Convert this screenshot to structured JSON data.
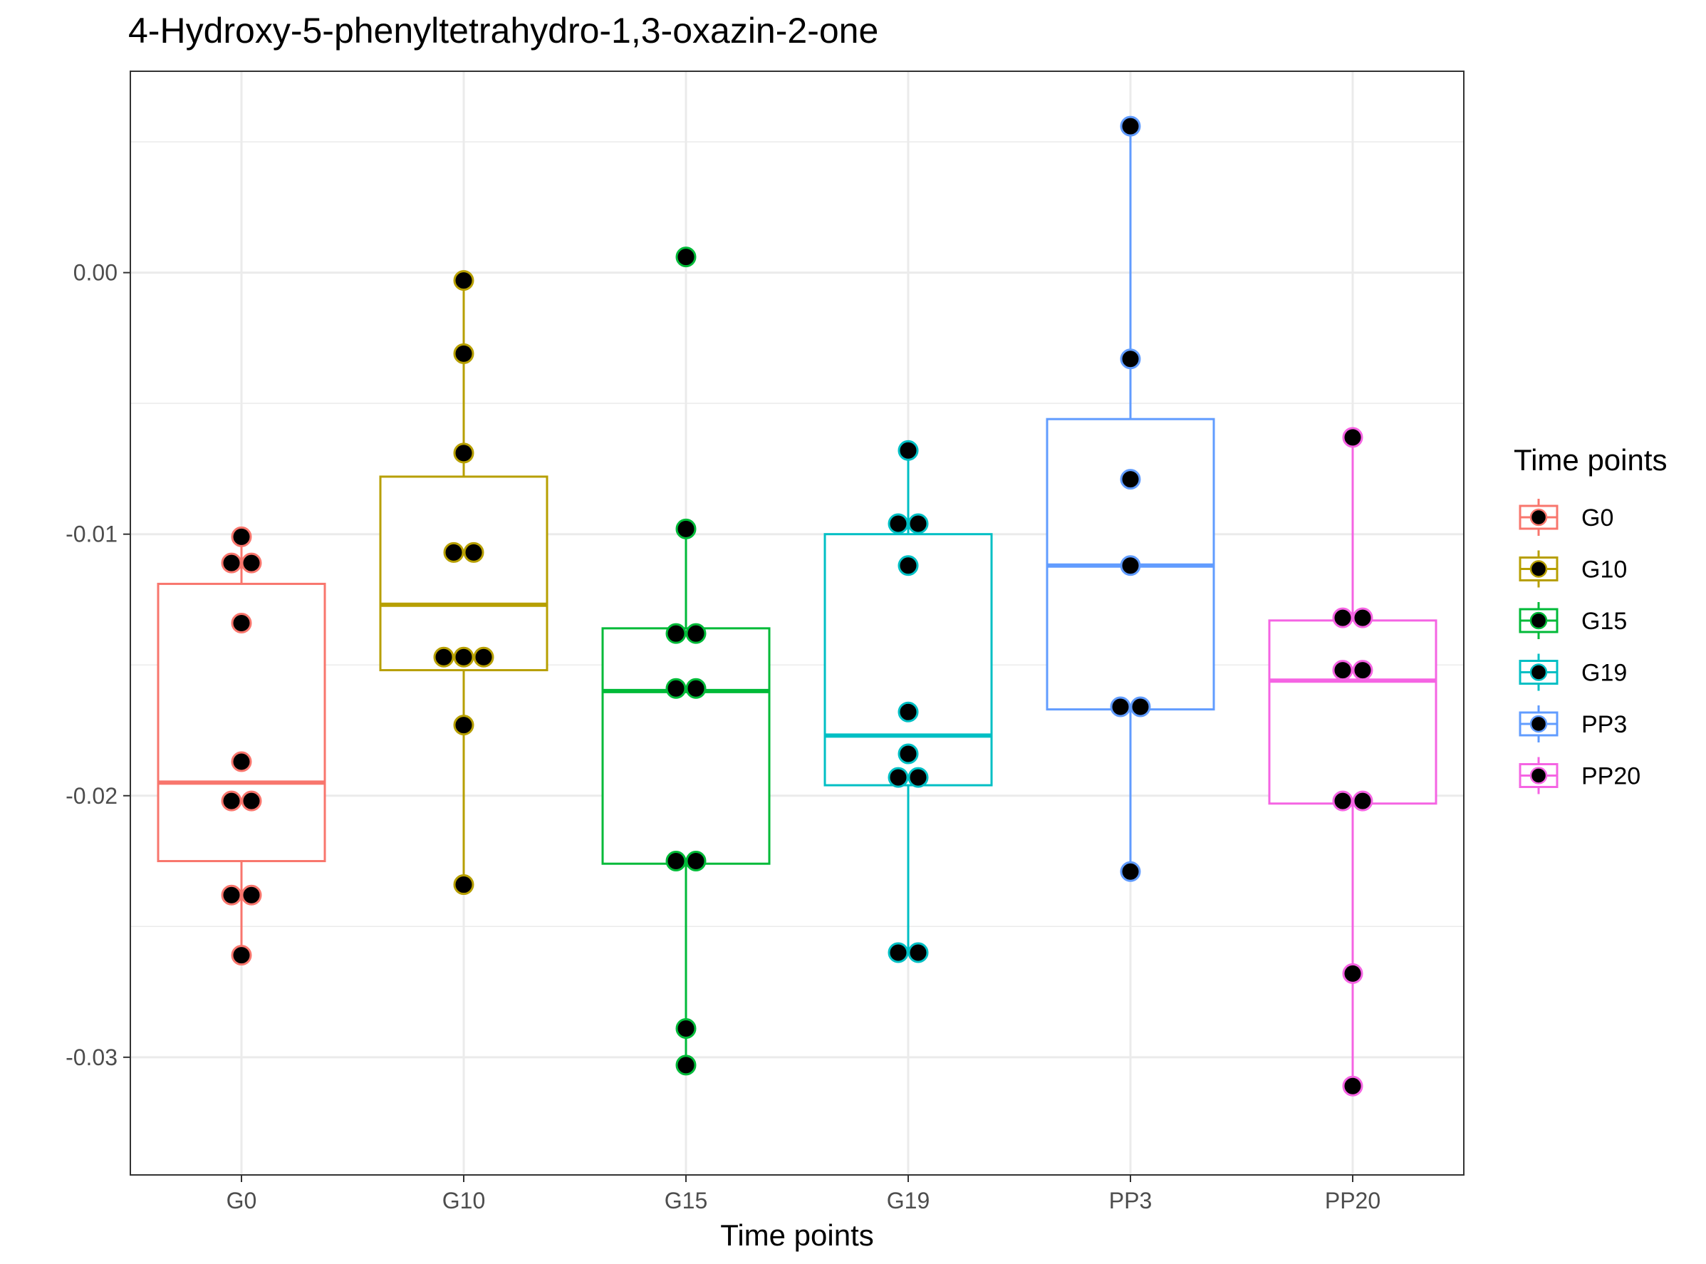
{
  "chart_data": {
    "type": "box",
    "title": "4-Hydroxy-5-phenyltetrahydro-1,3-oxazin-2-one",
    "xlabel": "Time points",
    "ylabel": "",
    "ylim": [
      -0.0345,
      0.0077
    ],
    "y_ticks": [
      "0.00",
      "-0.01",
      "-0.02",
      "-0.03"
    ],
    "y_tick_values": [
      0.0,
      -0.01,
      -0.02,
      -0.03
    ],
    "grid": true,
    "legend": {
      "title": "Time points",
      "position": "right"
    },
    "categories": [
      "G0",
      "G10",
      "G15",
      "G19",
      "PP3",
      "PP20"
    ],
    "series": [
      {
        "name": "G0",
        "color": "#F8766D",
        "box": {
          "whisker_low": -0.0261,
          "q1": -0.0225,
          "median": -0.0195,
          "q3": -0.0119,
          "whisker_high": -0.0101
        },
        "points": [
          -0.0101,
          -0.0111,
          -0.0111,
          -0.0134,
          -0.0187,
          -0.0202,
          -0.0202,
          -0.0238,
          -0.0238,
          -0.0261
        ]
      },
      {
        "name": "G10",
        "color": "#B79F00",
        "box": {
          "whisker_low": -0.0234,
          "q1": -0.0152,
          "median": -0.0127,
          "q3": -0.0078,
          "whisker_high": -0.0003
        },
        "points": [
          -0.0003,
          -0.0031,
          -0.0069,
          -0.0107,
          -0.0107,
          -0.0147,
          -0.0147,
          -0.0147,
          -0.0173,
          -0.0234
        ]
      },
      {
        "name": "G15",
        "color": "#00BA38",
        "box": {
          "whisker_low": -0.0303,
          "q1": -0.0226,
          "median": -0.016,
          "q3": -0.0136,
          "whisker_high": -0.0098
        },
        "points": [
          0.0006,
          -0.0098,
          -0.0138,
          -0.0138,
          -0.0159,
          -0.0159,
          -0.0225,
          -0.0225,
          -0.0289,
          -0.0303
        ]
      },
      {
        "name": "G19",
        "color": "#00BFC4",
        "box": {
          "whisker_low": -0.026,
          "q1": -0.0196,
          "median": -0.0177,
          "q3": -0.01,
          "whisker_high": -0.0068
        },
        "points": [
          -0.0068,
          -0.0096,
          -0.0096,
          -0.0112,
          -0.0168,
          -0.0184,
          -0.0193,
          -0.0193,
          -0.026,
          -0.026
        ]
      },
      {
        "name": "PP3",
        "color": "#619CFF",
        "box": {
          "whisker_low": -0.0229,
          "q1": -0.0167,
          "median": -0.0112,
          "q3": -0.0056,
          "whisker_high": 0.0056
        },
        "points": [
          0.0056,
          -0.0033,
          -0.0079,
          -0.0112,
          -0.0166,
          -0.0166,
          -0.0229
        ]
      },
      {
        "name": "PP20",
        "color": "#F564E3",
        "box": {
          "whisker_low": -0.0311,
          "q1": -0.0203,
          "median": -0.0156,
          "q3": -0.0133,
          "whisker_high": -0.0063
        },
        "points": [
          -0.0063,
          -0.0132,
          -0.0132,
          -0.0152,
          -0.0152,
          -0.0202,
          -0.0202,
          -0.0268,
          -0.0311
        ]
      }
    ]
  }
}
